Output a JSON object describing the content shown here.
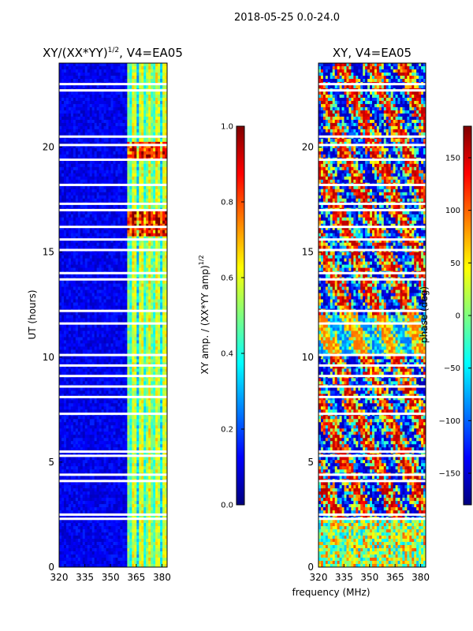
{
  "suptitle": "2018-05-25 0.0-24.0",
  "xlabel": "frequency (MHz)",
  "chart_data": [
    {
      "type": "heatmap",
      "title_text": "XY/(XX*YY)",
      "title_exp": "1/2",
      "title_suffix": ", V4=EA05",
      "ylabel": "UT (hours)",
      "xlim": [
        320,
        383
      ],
      "ylim": [
        0,
        24
      ],
      "xticks": [
        "320",
        "335",
        "350",
        "365",
        "380"
      ],
      "xtick_values": [
        320,
        335,
        350,
        365,
        380
      ],
      "yticks": [
        "0",
        "5",
        "10",
        "15",
        "20"
      ],
      "ytick_values": [
        0,
        5,
        10,
        15,
        20
      ],
      "colorbar": {
        "label_text": "XY amp. / (XX*YY amp)",
        "label_exp": "1/2",
        "ticks": [
          "0.0",
          "0.2",
          "0.4",
          "0.6",
          "0.8",
          "1.0"
        ],
        "tick_values": [
          0,
          0.2,
          0.4,
          0.6,
          0.8,
          1.0
        ],
        "range": [
          0,
          1
        ]
      },
      "colormap": "jet",
      "gap_hours": [
        2.3,
        2.5,
        4.1,
        4.4,
        5.3,
        5.5,
        7.3,
        8.1,
        8.6,
        9.1,
        9.6,
        10.1,
        11.6,
        12.2,
        13.7,
        14.0,
        15.1,
        15.6,
        16.2,
        17.0,
        17.3,
        18.2,
        19.4,
        20.1,
        20.5,
        22.7,
        23.0
      ]
    },
    {
      "type": "heatmap",
      "title_text": "XY, V4=EA05",
      "xlim": [
        320,
        383
      ],
      "ylim": [
        0,
        24
      ],
      "xticks": [
        "320",
        "335",
        "350",
        "365",
        "380"
      ],
      "xtick_values": [
        320,
        335,
        350,
        365,
        380
      ],
      "yticks": [
        "0",
        "5",
        "10",
        "15",
        "20"
      ],
      "ytick_values": [
        0,
        5,
        10,
        15,
        20
      ],
      "colorbar": {
        "label_text": "phase (deg)",
        "ticks": [
          "−150",
          "−100",
          "−50",
          "0",
          "50",
          "100",
          "150"
        ],
        "tick_values": [
          -150,
          -100,
          -50,
          0,
          50,
          100,
          150
        ],
        "range": [
          -180,
          180
        ]
      },
      "colormap": "jet",
      "gap_hours": [
        2.3,
        2.5,
        4.1,
        4.4,
        5.3,
        5.5,
        7.3,
        8.1,
        8.6,
        9.1,
        9.6,
        10.1,
        11.6,
        12.2,
        13.7,
        14.0,
        15.1,
        15.6,
        16.2,
        17.0,
        17.3,
        18.2,
        19.4,
        20.1,
        20.5,
        22.7,
        23.0
      ]
    }
  ]
}
